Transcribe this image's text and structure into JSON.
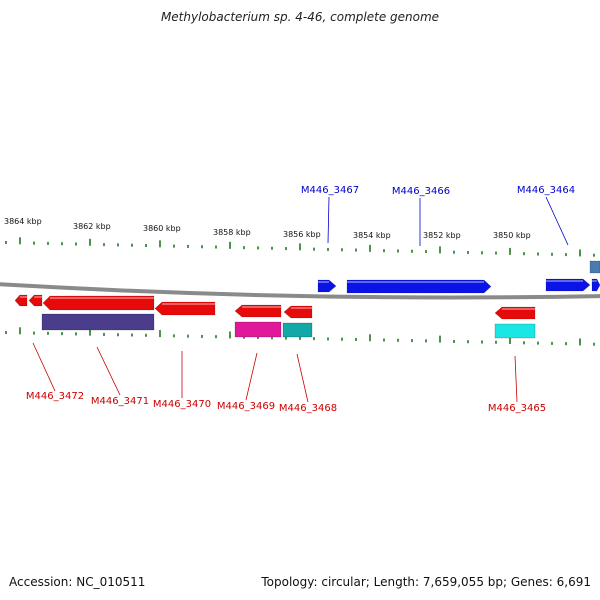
{
  "title": "Methylobacterium sp. 4-46, complete genome",
  "footer": {
    "accession": "Accession: NC_010511",
    "summary": "Topology: circular; Length: 7,659,055 bp; Genes: 6,691"
  },
  "colors": {
    "backbone": "#8a8a8a",
    "tick": "#1f7a1f",
    "forward_gene": "#0a14e6",
    "reverse_gene": "#e60a0a",
    "forward_label": "#0000cc",
    "reverse_label": "#cc0000",
    "cds_forward": "#4a7bb0",
    "cds_purple": "#4a3e8c",
    "cds_magenta": "#e0199a",
    "cds_teal": "#12a8a8",
    "cds_cyan": "#1ae6e6"
  },
  "kbp_labels": [
    "3864 kbp",
    "3862 kbp",
    "3860 kbp",
    "3858 kbp",
    "3856 kbp",
    "3854 kbp",
    "3852 kbp",
    "3850 kbp"
  ],
  "genes_forward": [
    {
      "label": "M446_3467"
    },
    {
      "label": "M446_3466"
    },
    {
      "label": "M446_3464"
    }
  ],
  "genes_reverse": [
    {
      "label": "M446_3472"
    },
    {
      "label": "M446_3471"
    },
    {
      "label": "M446_3470"
    },
    {
      "label": "M446_3469"
    },
    {
      "label": "M446_3468"
    },
    {
      "label": "M446_3465"
    }
  ]
}
